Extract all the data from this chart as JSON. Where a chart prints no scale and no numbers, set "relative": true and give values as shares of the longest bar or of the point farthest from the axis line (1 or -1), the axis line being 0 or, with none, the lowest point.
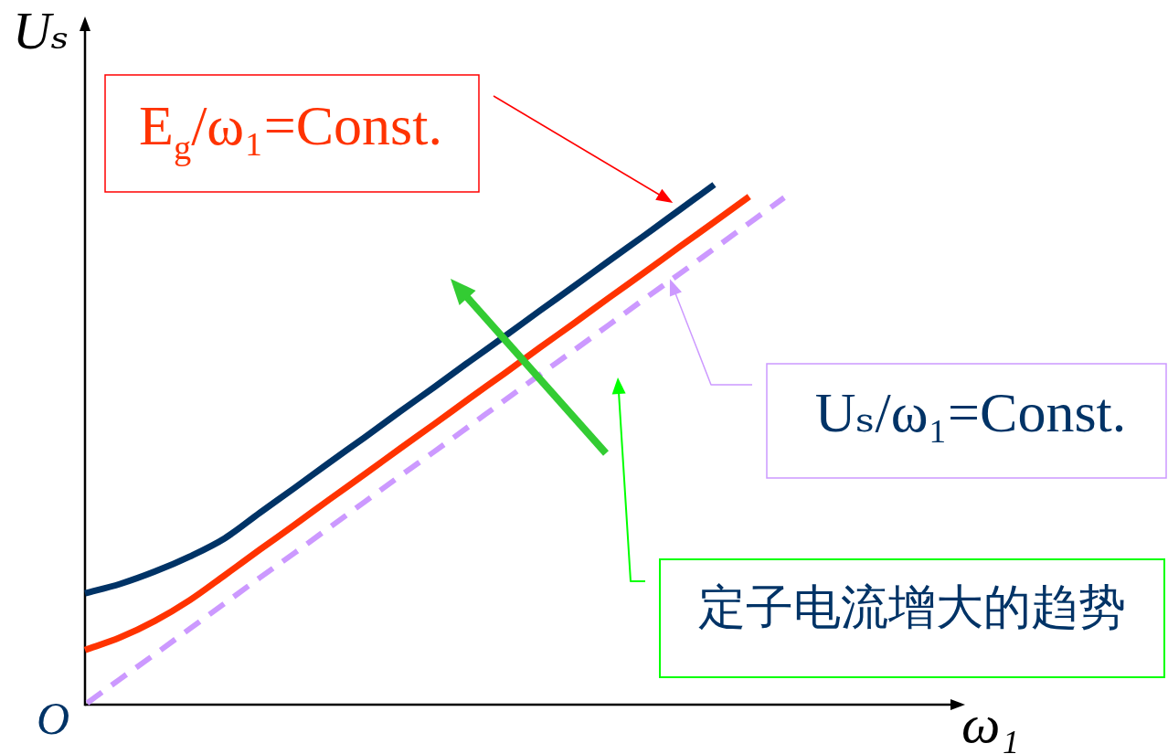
{
  "chart_data": {
    "type": "line",
    "relative": true,
    "xlabel": "ω₁",
    "ylabel": "Uₛ",
    "categories": [
      null,
      null,
      null,
      null,
      null,
      null,
      null,
      null,
      null,
      null,
      null,
      null,
      null,
      null,
      null,
      null,
      null,
      null,
      null,
      null,
      null,
      null,
      null,
      null,
      null
    ],
    "series": [
      {
        "color": "#003366",
        "values": [
          0.214,
          0.232,
          0.256,
          0.285,
          0.32,
          0.369,
          0.417,
          0.466,
          0.514,
          0.563,
          0.611,
          0.66,
          0.708,
          0.757,
          0.805,
          0.854,
          0.902,
          0.951,
          1.0,
          null,
          null,
          null,
          null,
          null,
          null
        ]
      },
      {
        "color": "#ff3300",
        "values": [
          0.105,
          0.129,
          0.161,
          0.201,
          0.249,
          0.298,
          0.346,
          0.395,
          0.443,
          0.492,
          0.54,
          0.589,
          0.637,
          0.686,
          0.734,
          0.783,
          0.831,
          0.88,
          0.928,
          0.977,
          null,
          null,
          null,
          null,
          null
        ]
      },
      {
        "color": "#cc99ff",
        "line_style": "dashed",
        "values": [
          0,
          0.049,
          0.097,
          0.146,
          0.195,
          0.244,
          0.292,
          0.341,
          0.39,
          0.439,
          0.487,
          0.536,
          0.585,
          0.634,
          0.682,
          0.731,
          0.78,
          0.828,
          0.877,
          0.926,
          0.975,
          null,
          null,
          null,
          null
        ]
      }
    ],
    "annotations": [
      "E$_{g}$/ω₁=Const.",
      "Uₛ/ω₁=Const.",
      "定子电流增大的趋势",
      "O"
    ]
  }
}
